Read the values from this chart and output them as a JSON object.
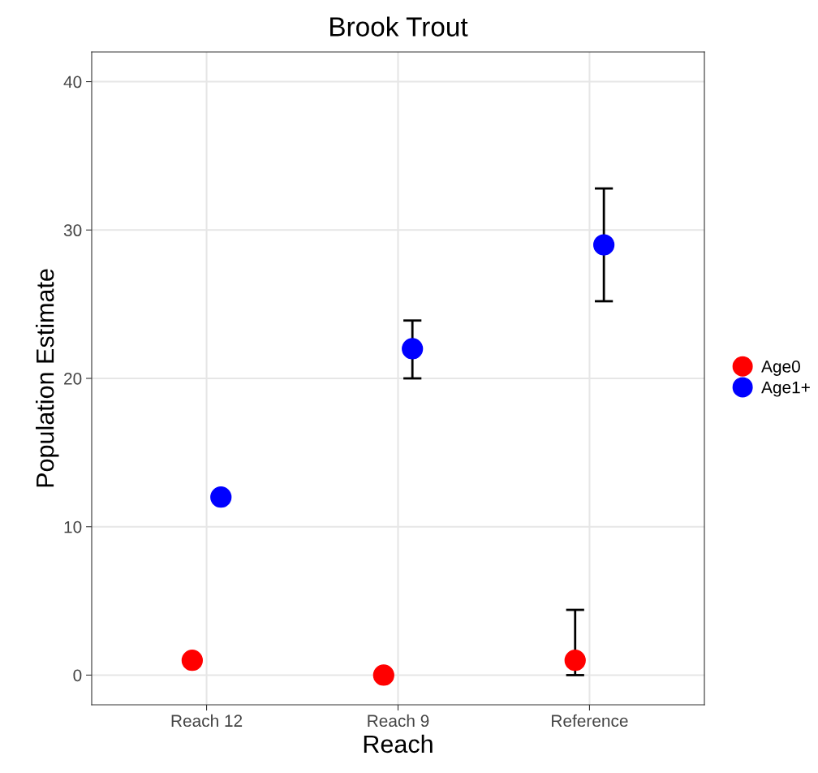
{
  "chart_data": {
    "type": "scatter",
    "title": "Brook Trout",
    "xlabel": "Reach",
    "ylabel": "Population Estimate",
    "categories": [
      "Reach 12",
      "Reach 9",
      "Reference"
    ],
    "series": [
      {
        "name": "Age0",
        "color": "#ff0000",
        "values": [
          1,
          0,
          1
        ],
        "errors": [
          null,
          null,
          [
            0,
            4.4
          ]
        ]
      },
      {
        "name": "Age1+",
        "color": "#0000ff",
        "values": [
          12,
          22,
          29
        ],
        "errors": [
          null,
          [
            20.0,
            23.9
          ],
          [
            25.2,
            32.8
          ]
        ]
      }
    ],
    "ylim": [
      -2,
      42
    ],
    "yticks": [
      0,
      10,
      20,
      30,
      40
    ],
    "grid": true,
    "legend": "right",
    "marker": "circle"
  }
}
